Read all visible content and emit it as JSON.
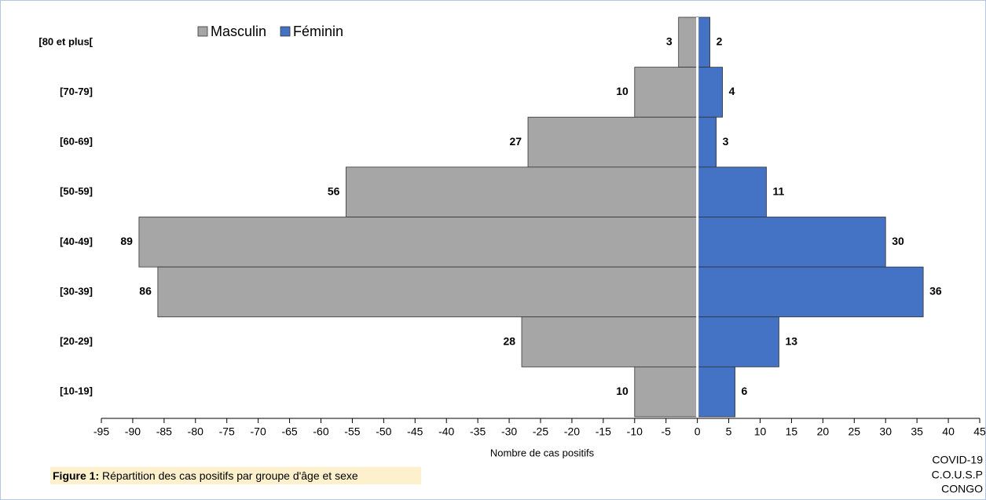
{
  "chart_data": {
    "type": "pyramid",
    "categories": [
      "[80 et plus[",
      "[70-79]",
      "[60-69]",
      "[50-59]",
      "[40-49]",
      "[30-39]",
      "[20-29]",
      "[10-19]"
    ],
    "series": [
      {
        "name": "Masculin",
        "color": "#a6a6a6",
        "values": [
          -3,
          -10,
          -27,
          -56,
          -89,
          -86,
          -28,
          -10
        ],
        "value_labels": [
          "3",
          "10",
          "27",
          "56",
          "89",
          "86",
          "28",
          "10"
        ]
      },
      {
        "name": "Féminin",
        "color": "#4472c4",
        "values": [
          2,
          4,
          3,
          11,
          30,
          36,
          13,
          6
        ]
      }
    ],
    "xlabel": "Nombre de cas positifs",
    "xlim": [
      -95,
      45
    ],
    "xticks": [
      -95,
      -90,
      -85,
      -80,
      -75,
      -70,
      -65,
      -60,
      -55,
      -50,
      -45,
      -40,
      -35,
      -30,
      -25,
      -20,
      -15,
      -10,
      -5,
      0,
      5,
      10,
      15,
      20,
      25,
      30,
      35,
      40,
      45
    ],
    "legend": "top-left",
    "caption": {
      "label": "Figure 1:",
      "text": "Répartition des cas positifs par groupe d'âge et sexe"
    },
    "source": [
      "COVID-19",
      "C.O.U.S.P",
      "CONGO"
    ]
  }
}
